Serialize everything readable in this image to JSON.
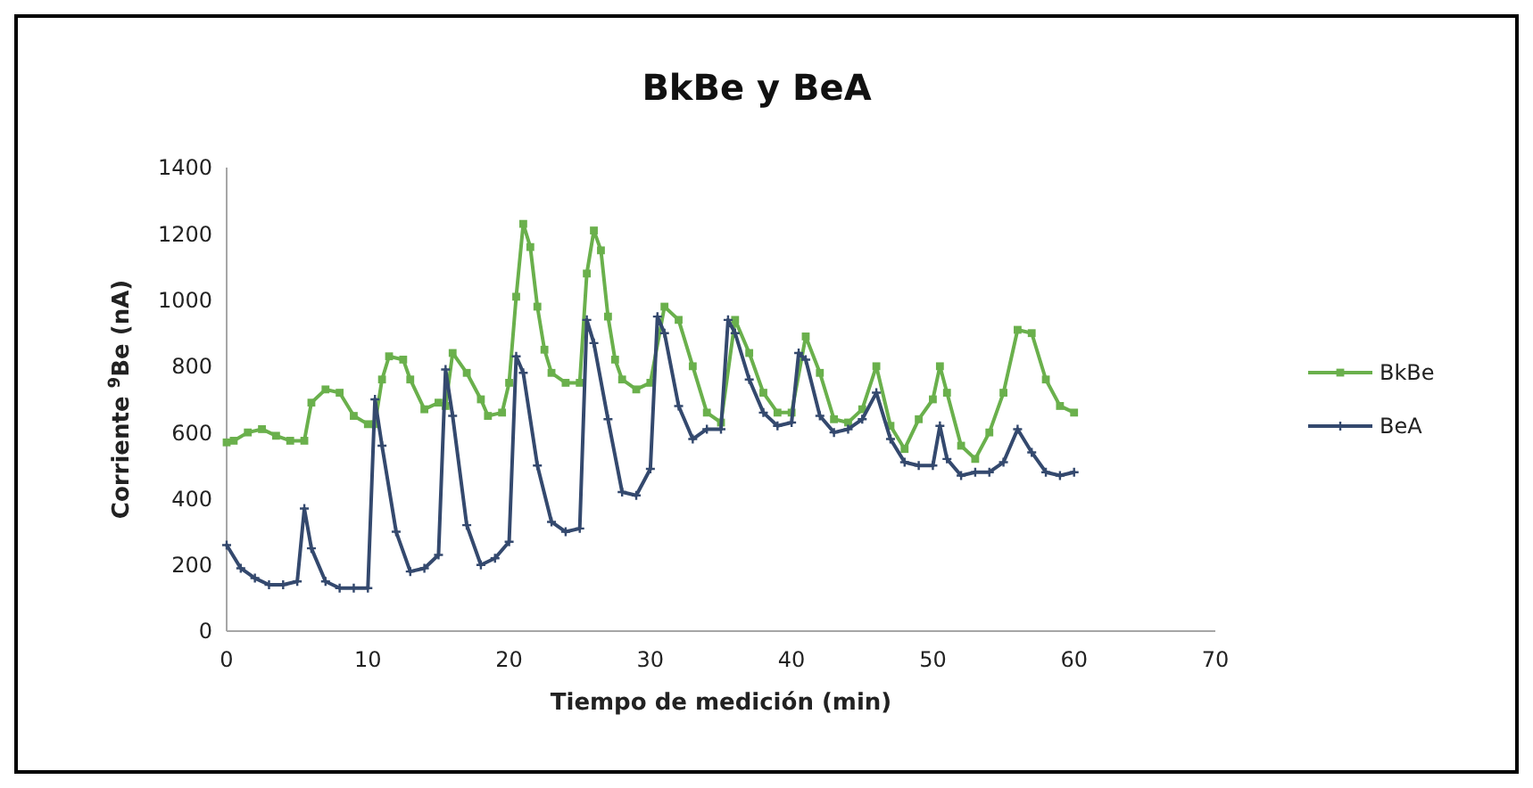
{
  "chart_data": {
    "type": "line",
    "title": "BkBe y BeA",
    "xlabel": "Tiempo de medición  (min)",
    "ylabel": "Corriente $^{9}$Be  (nA)",
    "xlim": [
      0,
      70
    ],
    "xticks": [
      0,
      10,
      20,
      30,
      40,
      50,
      60,
      70
    ],
    "ylim": [
      0,
      1400
    ],
    "yticks": [
      0,
      200,
      400,
      600,
      800,
      1000,
      1200,
      1400
    ],
    "grid": false,
    "legend": "right",
    "line_style": "solid",
    "series": [
      {
        "name": "BkBe",
        "color": "#6ab04c",
        "marker": "square",
        "x": [
          0,
          0.5,
          1.5,
          2.5,
          3.5,
          4.5,
          5.5,
          6,
          7,
          8,
          9,
          10,
          10.5,
          11,
          11.5,
          12.5,
          13,
          14,
          15,
          15.5,
          16,
          17,
          18,
          18.5,
          19.5,
          20,
          20.5,
          21,
          21.5,
          22,
          22.5,
          23,
          24,
          25,
          25.5,
          26,
          26.5,
          27,
          27.5,
          28,
          29,
          30,
          31,
          32,
          33,
          34,
          35,
          36,
          37,
          38,
          39,
          40,
          41,
          42,
          43,
          44,
          45,
          46,
          47,
          48,
          49,
          50,
          50.5,
          51,
          52,
          53,
          54,
          55,
          56,
          57,
          58,
          59,
          60
        ],
        "values": [
          570,
          575,
          600,
          610,
          590,
          575,
          575,
          690,
          730,
          720,
          650,
          625,
          625,
          760,
          830,
          820,
          760,
          670,
          690,
          680,
          840,
          780,
          700,
          650,
          660,
          750,
          1010,
          1230,
          1160,
          980,
          850,
          780,
          750,
          750,
          1080,
          1210,
          1150,
          950,
          820,
          760,
          730,
          750,
          980,
          940,
          800,
          660,
          630,
          940,
          840,
          720,
          660,
          660,
          890,
          780,
          640,
          630,
          670,
          800,
          620,
          550,
          640,
          700,
          800,
          720,
          560,
          520,
          600,
          720,
          910,
          900,
          760,
          680,
          660
        ]
      },
      {
        "name": "BeA",
        "color": "#34496e",
        "marker": "cross",
        "x": [
          0,
          1,
          2,
          3,
          4,
          5,
          5.5,
          6,
          7,
          8,
          9,
          10,
          10.5,
          11,
          12,
          13,
          14,
          15,
          15.5,
          16,
          17,
          18,
          19,
          20,
          20.5,
          21,
          22,
          23,
          24,
          25,
          25.5,
          26,
          27,
          28,
          29,
          30,
          30.5,
          31,
          32,
          33,
          34,
          35,
          35.5,
          36,
          37,
          38,
          39,
          40,
          40.5,
          41,
          42,
          43,
          44,
          45,
          46,
          47,
          48,
          49,
          50,
          50.5,
          51,
          52,
          53,
          54,
          55,
          56,
          57,
          58,
          59,
          60
        ],
        "values": [
          260,
          190,
          160,
          140,
          140,
          150,
          370,
          250,
          150,
          130,
          130,
          130,
          700,
          560,
          300,
          180,
          190,
          230,
          790,
          650,
          320,
          200,
          220,
          270,
          830,
          780,
          500,
          330,
          300,
          310,
          940,
          870,
          640,
          420,
          410,
          490,
          950,
          900,
          680,
          580,
          610,
          610,
          940,
          900,
          760,
          660,
          620,
          630,
          840,
          820,
          650,
          600,
          610,
          640,
          720,
          580,
          510,
          500,
          500,
          620,
          520,
          470,
          480,
          480,
          510,
          610,
          540,
          480,
          470,
          480
        ]
      }
    ]
  }
}
